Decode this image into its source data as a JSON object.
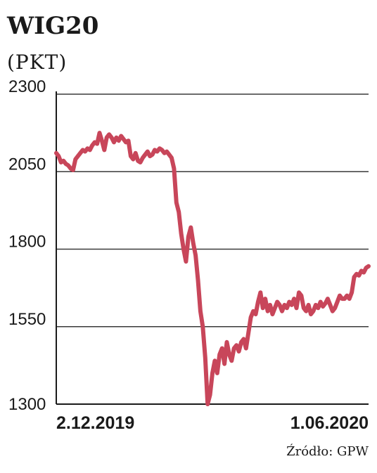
{
  "chart_data": {
    "type": "line",
    "title": "WIG20",
    "unit_label": "(PKT)",
    "source": "Źródło: GPW",
    "ylim": [
      1300,
      2300
    ],
    "yticks": [
      1300,
      1550,
      1800,
      2050,
      2300
    ],
    "x_tick_labels": [
      "2.12.2019",
      "1.06.2020"
    ],
    "grid": true,
    "colors": {
      "line": "#c8465a",
      "grid": "#3a3a3a",
      "text": "#1a1a1a"
    },
    "series": [
      {
        "x": [
          0,
          1,
          2,
          3,
          4,
          5,
          6,
          7,
          8,
          9,
          10,
          11,
          12,
          13,
          14,
          15,
          16,
          17,
          18,
          19,
          20,
          21,
          22,
          23,
          24,
          25,
          26,
          27,
          28,
          29,
          30,
          31,
          32,
          33,
          34,
          35,
          36,
          37,
          38,
          39,
          40,
          41,
          42,
          43,
          44,
          45,
          46,
          47,
          48,
          49,
          50,
          51,
          52,
          53,
          54,
          55,
          56,
          57,
          58,
          59,
          60,
          61,
          62,
          63,
          64,
          65,
          66,
          67,
          68,
          69,
          70,
          71,
          72,
          73,
          74,
          75,
          76,
          77,
          78,
          79,
          80,
          81,
          82,
          83,
          84,
          85,
          86,
          87,
          88,
          89,
          90,
          91,
          92,
          93,
          94,
          95,
          96,
          97,
          98,
          99,
          100,
          101,
          102,
          103,
          104,
          105,
          106,
          107,
          108,
          109,
          110,
          111,
          112,
          113,
          114,
          115,
          116,
          117,
          118,
          119,
          120,
          121,
          122,
          123,
          124,
          125,
          126,
          127,
          128,
          129,
          130
        ],
        "values": [
          2110,
          2100,
          2080,
          2085,
          2075,
          2070,
          2060,
          2055,
          2090,
          2100,
          2110,
          2120,
          2115,
          2125,
          2120,
          2135,
          2145,
          2140,
          2175,
          2150,
          2120,
          2160,
          2170,
          2160,
          2145,
          2160,
          2150,
          2165,
          2155,
          2145,
          2150,
          2100,
          2090,
          2110,
          2085,
          2080,
          2095,
          2105,
          2115,
          2100,
          2105,
          2120,
          2115,
          2125,
          2120,
          2110,
          2115,
          2105,
          2095,
          2060,
          1950,
          1920,
          1850,
          1800,
          1760,
          1840,
          1870,
          1820,
          1780,
          1700,
          1600,
          1550,
          1450,
          1300,
          1330,
          1400,
          1440,
          1400,
          1460,
          1480,
          1430,
          1500,
          1460,
          1440,
          1480,
          1490,
          1470,
          1500,
          1510,
          1480,
          1530,
          1580,
          1600,
          1590,
          1630,
          1660,
          1610,
          1640,
          1600,
          1620,
          1590,
          1610,
          1630,
          1620,
          1600,
          1620,
          1610,
          1630,
          1620,
          1640,
          1610,
          1660,
          1650,
          1610,
          1600,
          1620,
          1590,
          1600,
          1620,
          1610,
          1630,
          1615,
          1625,
          1640,
          1620,
          1600,
          1610,
          1630,
          1650,
          1640,
          1640,
          1650,
          1640,
          1660,
          1710,
          1720,
          1715,
          1730,
          1725,
          1740,
          1745
        ]
      }
    ]
  }
}
